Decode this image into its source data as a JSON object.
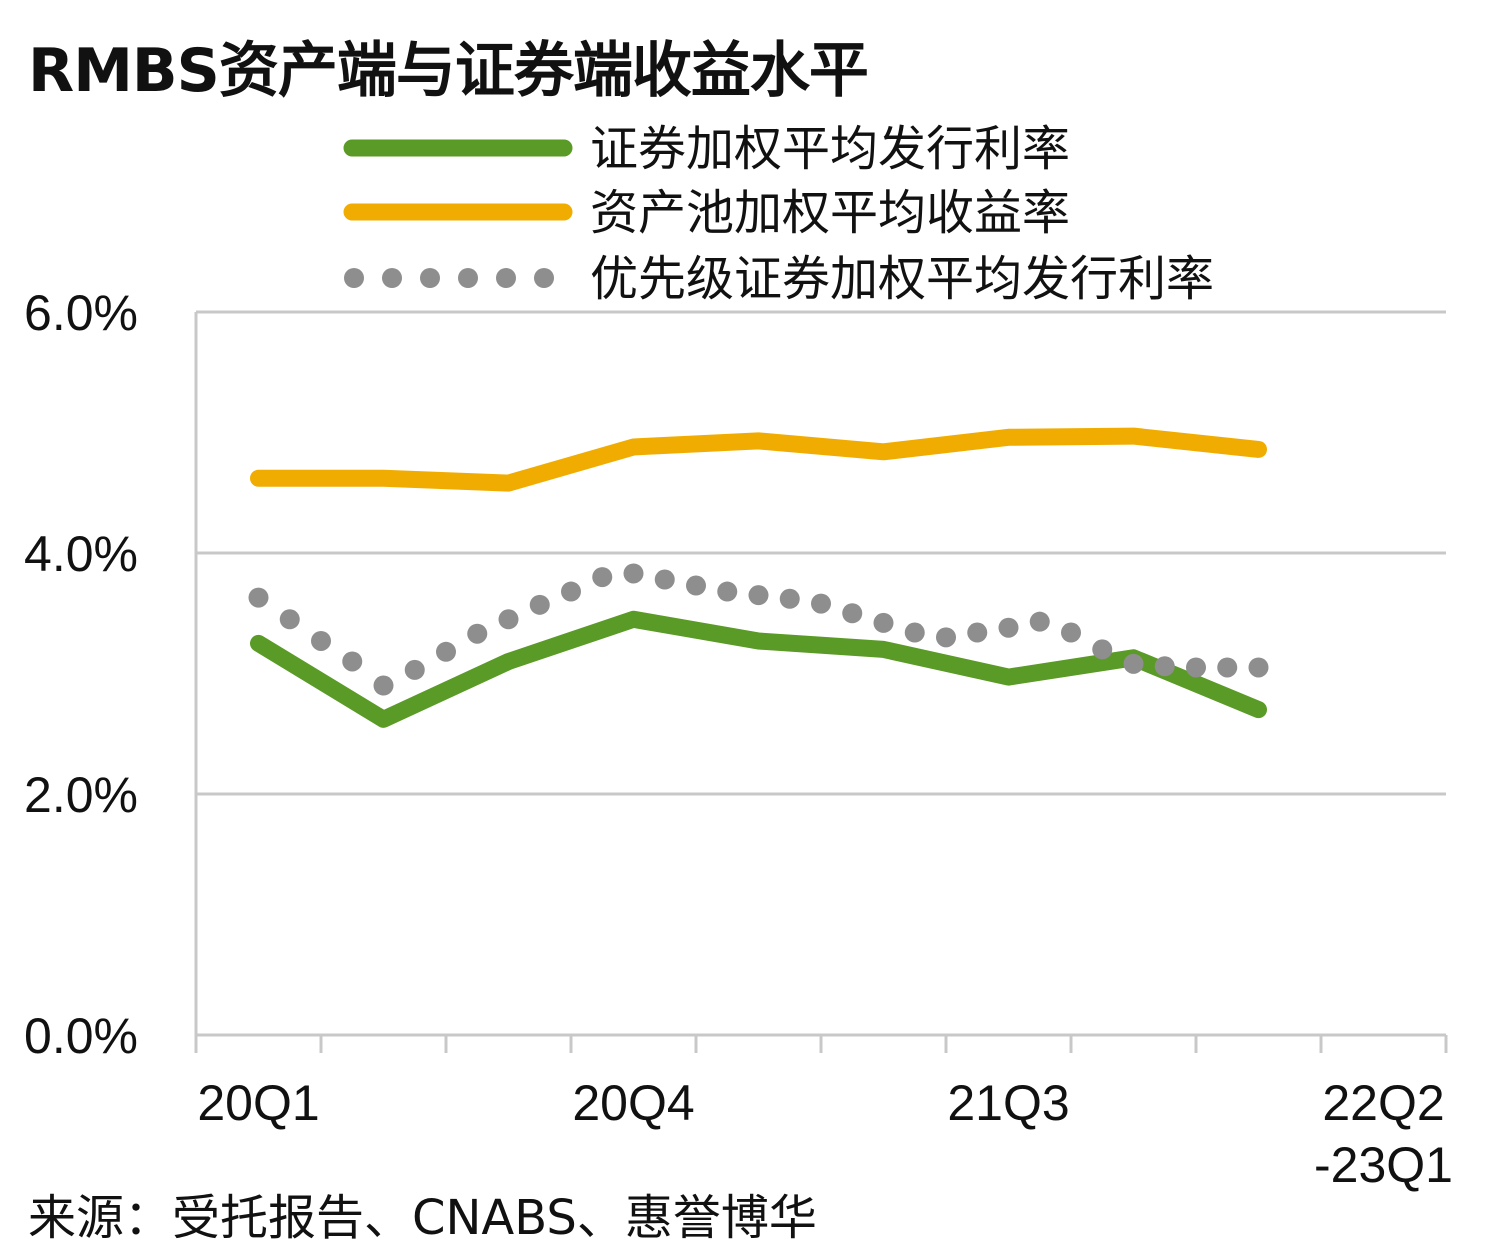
{
  "chart_data": {
    "type": "line",
    "title": "RMBS资产端与证券端收益水平",
    "source": "来源：受托报告、CNABS、惠誉博华",
    "y_ticks": [
      "0.0%",
      "2.0%",
      "4.0%",
      "6.0%"
    ],
    "ylim": [
      0,
      6
    ],
    "x_ticks": [
      {
        "label": "20Q1",
        "pos": 0
      },
      {
        "label": "20Q4",
        "pos": 3
      },
      {
        "label": "21Q3",
        "pos": 6
      },
      {
        "label": "22Q2\n-23Q1",
        "pos": 9
      }
    ],
    "grid": true,
    "legend_position": "top",
    "series": [
      {
        "name": "证券加权平均发行利率",
        "style": "solid",
        "color": "#5a9a26",
        "x": [
          0.5,
          1.5,
          2.5,
          3.5,
          4.5,
          5.5,
          6.5,
          7.5,
          8.5
        ],
        "values": [
          3.25,
          2.62,
          3.1,
          3.45,
          3.27,
          3.2,
          2.97,
          3.13,
          2.7
        ]
      },
      {
        "name": "资产池加权平均收益率",
        "style": "solid",
        "color": "#f0ac00",
        "x": [
          0.5,
          1.5,
          2.5,
          3.5,
          4.5,
          5.5,
          6.5,
          7.5,
          8.5
        ],
        "values": [
          4.62,
          4.62,
          4.58,
          4.88,
          4.93,
          4.84,
          4.96,
          4.97,
          4.86
        ]
      },
      {
        "name": "优先级证券加权平均发行利率",
        "style": "dotted",
        "color": "#8e8e8e",
        "x": [
          0.5,
          0.75,
          1.0,
          1.25,
          1.5,
          1.75,
          2.0,
          2.25,
          2.5,
          2.75,
          3.0,
          3.25,
          3.5,
          3.75,
          4.0,
          4.25,
          4.5,
          4.75,
          5.0,
          5.25,
          5.5,
          5.75,
          6.0,
          6.25,
          6.5,
          6.75,
          7.0,
          7.25,
          7.5,
          7.75,
          8.0,
          8.25,
          8.5
        ],
        "values": [
          3.63,
          3.45,
          3.27,
          3.1,
          2.9,
          3.03,
          3.18,
          3.33,
          3.45,
          3.57,
          3.68,
          3.8,
          3.83,
          3.78,
          3.73,
          3.68,
          3.65,
          3.62,
          3.58,
          3.5,
          3.42,
          3.34,
          3.3,
          3.34,
          3.38,
          3.43,
          3.34,
          3.2,
          3.08,
          3.06,
          3.05,
          3.05,
          3.05
        ]
      }
    ]
  }
}
